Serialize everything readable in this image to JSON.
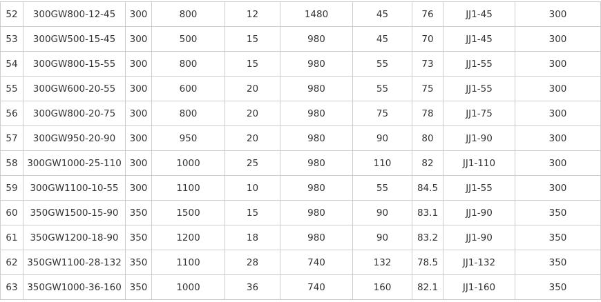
{
  "table": {
    "rows": [
      [
        "52",
        "300GW800-12-45",
        "300",
        "800",
        "12",
        "1480",
        "45",
        "76",
        "JJ1-45",
        "300"
      ],
      [
        "53",
        "300GW500-15-45",
        "300",
        "500",
        "15",
        "980",
        "45",
        "70",
        "JJ1-45",
        "300"
      ],
      [
        "54",
        "300GW800-15-55",
        "300",
        "800",
        "15",
        "980",
        "55",
        "73",
        "JJ1-55",
        "300"
      ],
      [
        "55",
        "300GW600-20-55",
        "300",
        "600",
        "20",
        "980",
        "55",
        "75",
        "JJ1-55",
        "300"
      ],
      [
        "56",
        "300GW800-20-75",
        "300",
        "800",
        "20",
        "980",
        "75",
        "78",
        "JJ1-75",
        "300"
      ],
      [
        "57",
        "300GW950-20-90",
        "300",
        "950",
        "20",
        "980",
        "90",
        "80",
        "JJ1-90",
        "300"
      ],
      [
        "58",
        "300GW1000-25-110",
        "300",
        "1000",
        "25",
        "980",
        "110",
        "82",
        "JJ1-110",
        "300"
      ],
      [
        "59",
        "300GW1100-10-55",
        "300",
        "1100",
        "10",
        "980",
        "55",
        "84.5",
        "JJ1-55",
        "300"
      ],
      [
        "60",
        "350GW1500-15-90",
        "350",
        "1500",
        "15",
        "980",
        "90",
        "83.1",
        "JJ1-90",
        "350"
      ],
      [
        "61",
        "350GW1200-18-90",
        "350",
        "1200",
        "18",
        "980",
        "90",
        "83.2",
        "JJ1-90",
        "350"
      ],
      [
        "62",
        "350GW1100-28-132",
        "350",
        "1100",
        "28",
        "740",
        "132",
        "78.5",
        "JJ1-132",
        "350"
      ],
      [
        "63",
        "350GW1000-36-160",
        "350",
        "1000",
        "36",
        "740",
        "160",
        "82.1",
        "JJ1-160",
        "350"
      ]
    ]
  }
}
